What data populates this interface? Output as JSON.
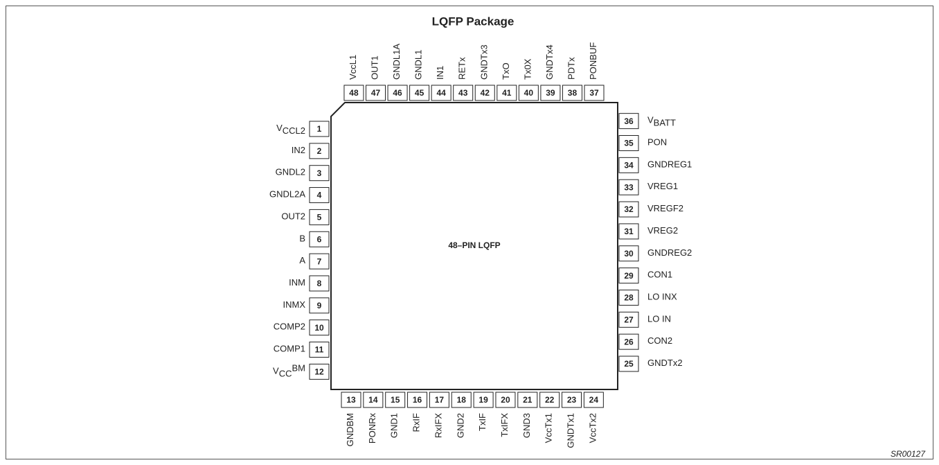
{
  "title": "LQFP Package",
  "chip_label": "48–PIN LQFP",
  "figure_code": "SR00127",
  "pins": {
    "left": [
      {
        "number": 1,
        "name": "V",
        "name_sub": "CCL2"
      },
      {
        "number": 2,
        "name": "IN2"
      },
      {
        "number": 3,
        "name": "GNDL2"
      },
      {
        "number": 4,
        "name": "GNDL2A"
      },
      {
        "number": 5,
        "name": "OUT2"
      },
      {
        "number": 6,
        "name": "B"
      },
      {
        "number": 7,
        "name": "A"
      },
      {
        "number": 8,
        "name": "INM"
      },
      {
        "number": 9,
        "name": "INMX"
      },
      {
        "number": 10,
        "name": "COMP2"
      },
      {
        "number": 11,
        "name": "COMP1"
      },
      {
        "number": 12,
        "name": "V",
        "name_sub": "CC",
        "name_after": "BM"
      }
    ],
    "bottom": [
      {
        "number": 13,
        "name": "GNDBM"
      },
      {
        "number": 14,
        "name": "PONRx"
      },
      {
        "number": 15,
        "name": "GND1"
      },
      {
        "number": 16,
        "name": "RxIF"
      },
      {
        "number": 17,
        "name": "RxIFX"
      },
      {
        "number": 18,
        "name": "GND2"
      },
      {
        "number": 19,
        "name": "TxIF"
      },
      {
        "number": 20,
        "name": "TxIFX"
      },
      {
        "number": 21,
        "name": "GND3"
      },
      {
        "number": 22,
        "name": "VccTx1"
      },
      {
        "number": 23,
        "name": "GNDTx1"
      },
      {
        "number": 24,
        "name": "VccTx2"
      }
    ],
    "right": [
      {
        "number": 25,
        "name": "GNDTx2"
      },
      {
        "number": 26,
        "name": "CON2"
      },
      {
        "number": 27,
        "name": "LO IN"
      },
      {
        "number": 28,
        "name": "LO INX"
      },
      {
        "number": 29,
        "name": "CON1"
      },
      {
        "number": 30,
        "name": "GNDREG2"
      },
      {
        "number": 31,
        "name": "VREG2"
      },
      {
        "number": 32,
        "name": "VREGF2"
      },
      {
        "number": 33,
        "name": "VREG1"
      },
      {
        "number": 34,
        "name": "GNDREG1"
      },
      {
        "number": 35,
        "name": "PON"
      },
      {
        "number": 36,
        "name": "V",
        "name_sub": "BATT"
      }
    ],
    "top": [
      {
        "number": 37,
        "name": "PONBUF"
      },
      {
        "number": 38,
        "name": "PDTx"
      },
      {
        "number": 39,
        "name": "GNDTx4"
      },
      {
        "number": 40,
        "name": "Tx0X"
      },
      {
        "number": 41,
        "name": "TxO"
      },
      {
        "number": 42,
        "name": "GNDTx3"
      },
      {
        "number": 43,
        "name": "RETx"
      },
      {
        "number": 44,
        "name": "IN1"
      },
      {
        "number": 45,
        "name": "GNDL1"
      },
      {
        "number": 46,
        "name": "GNDL1A"
      },
      {
        "number": 47,
        "name": "OUT1"
      },
      {
        "number": 48,
        "name": "VccL1"
      }
    ]
  }
}
